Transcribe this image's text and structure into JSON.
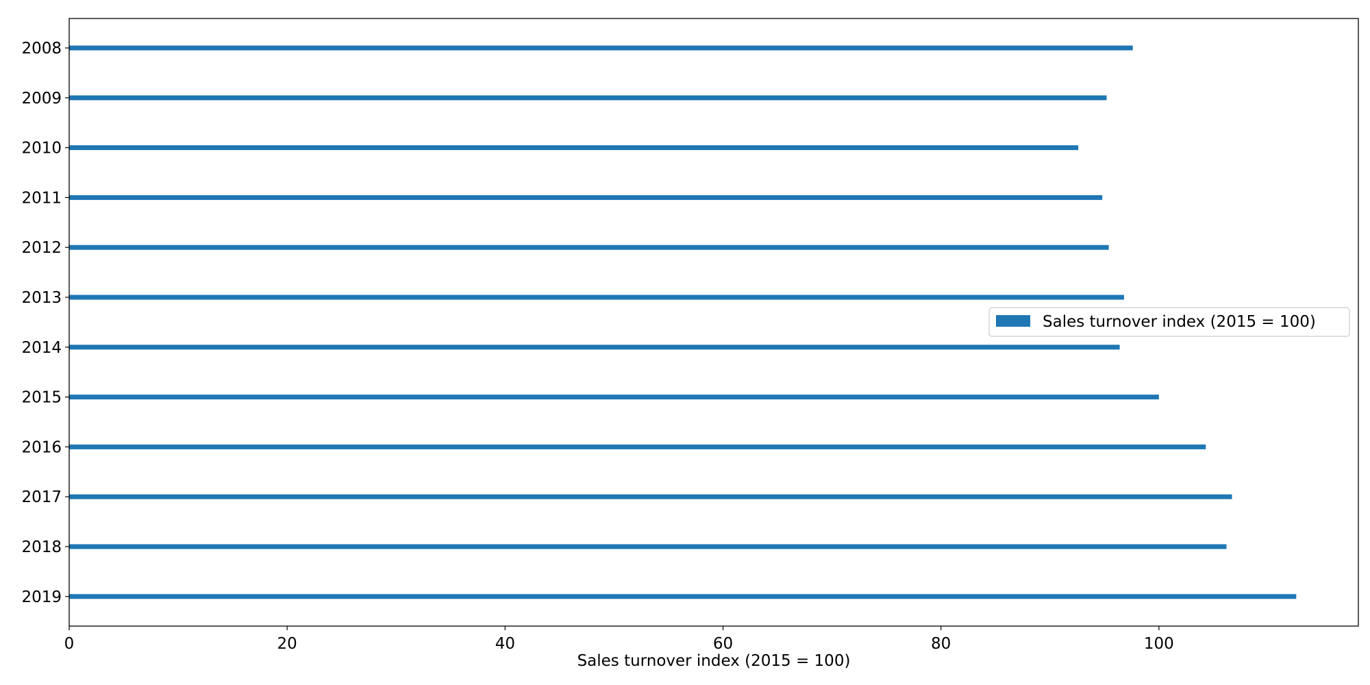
{
  "chart_data": {
    "type": "bar",
    "orientation": "horizontal",
    "categories": [
      "2008",
      "2009",
      "2010",
      "2011",
      "2012",
      "2013",
      "2014",
      "2015",
      "2016",
      "2017",
      "2018",
      "2019"
    ],
    "series": [
      {
        "name": "Sales turnover index (2015 = 100)",
        "values": [
          97.6,
          95.2,
          92.6,
          94.8,
          95.4,
          96.8,
          96.4,
          100.0,
          104.3,
          106.7,
          106.2,
          112.6
        ],
        "color": "#1f77b4"
      }
    ],
    "xlabel": "Sales turnover index (2015 = 100)",
    "ylabel": "",
    "xlim": [
      0,
      118.3
    ],
    "x_ticks": [
      0,
      20,
      40,
      60,
      80,
      100
    ],
    "y_axis_inverted": true,
    "grid": false,
    "legend_position": "center-right"
  }
}
